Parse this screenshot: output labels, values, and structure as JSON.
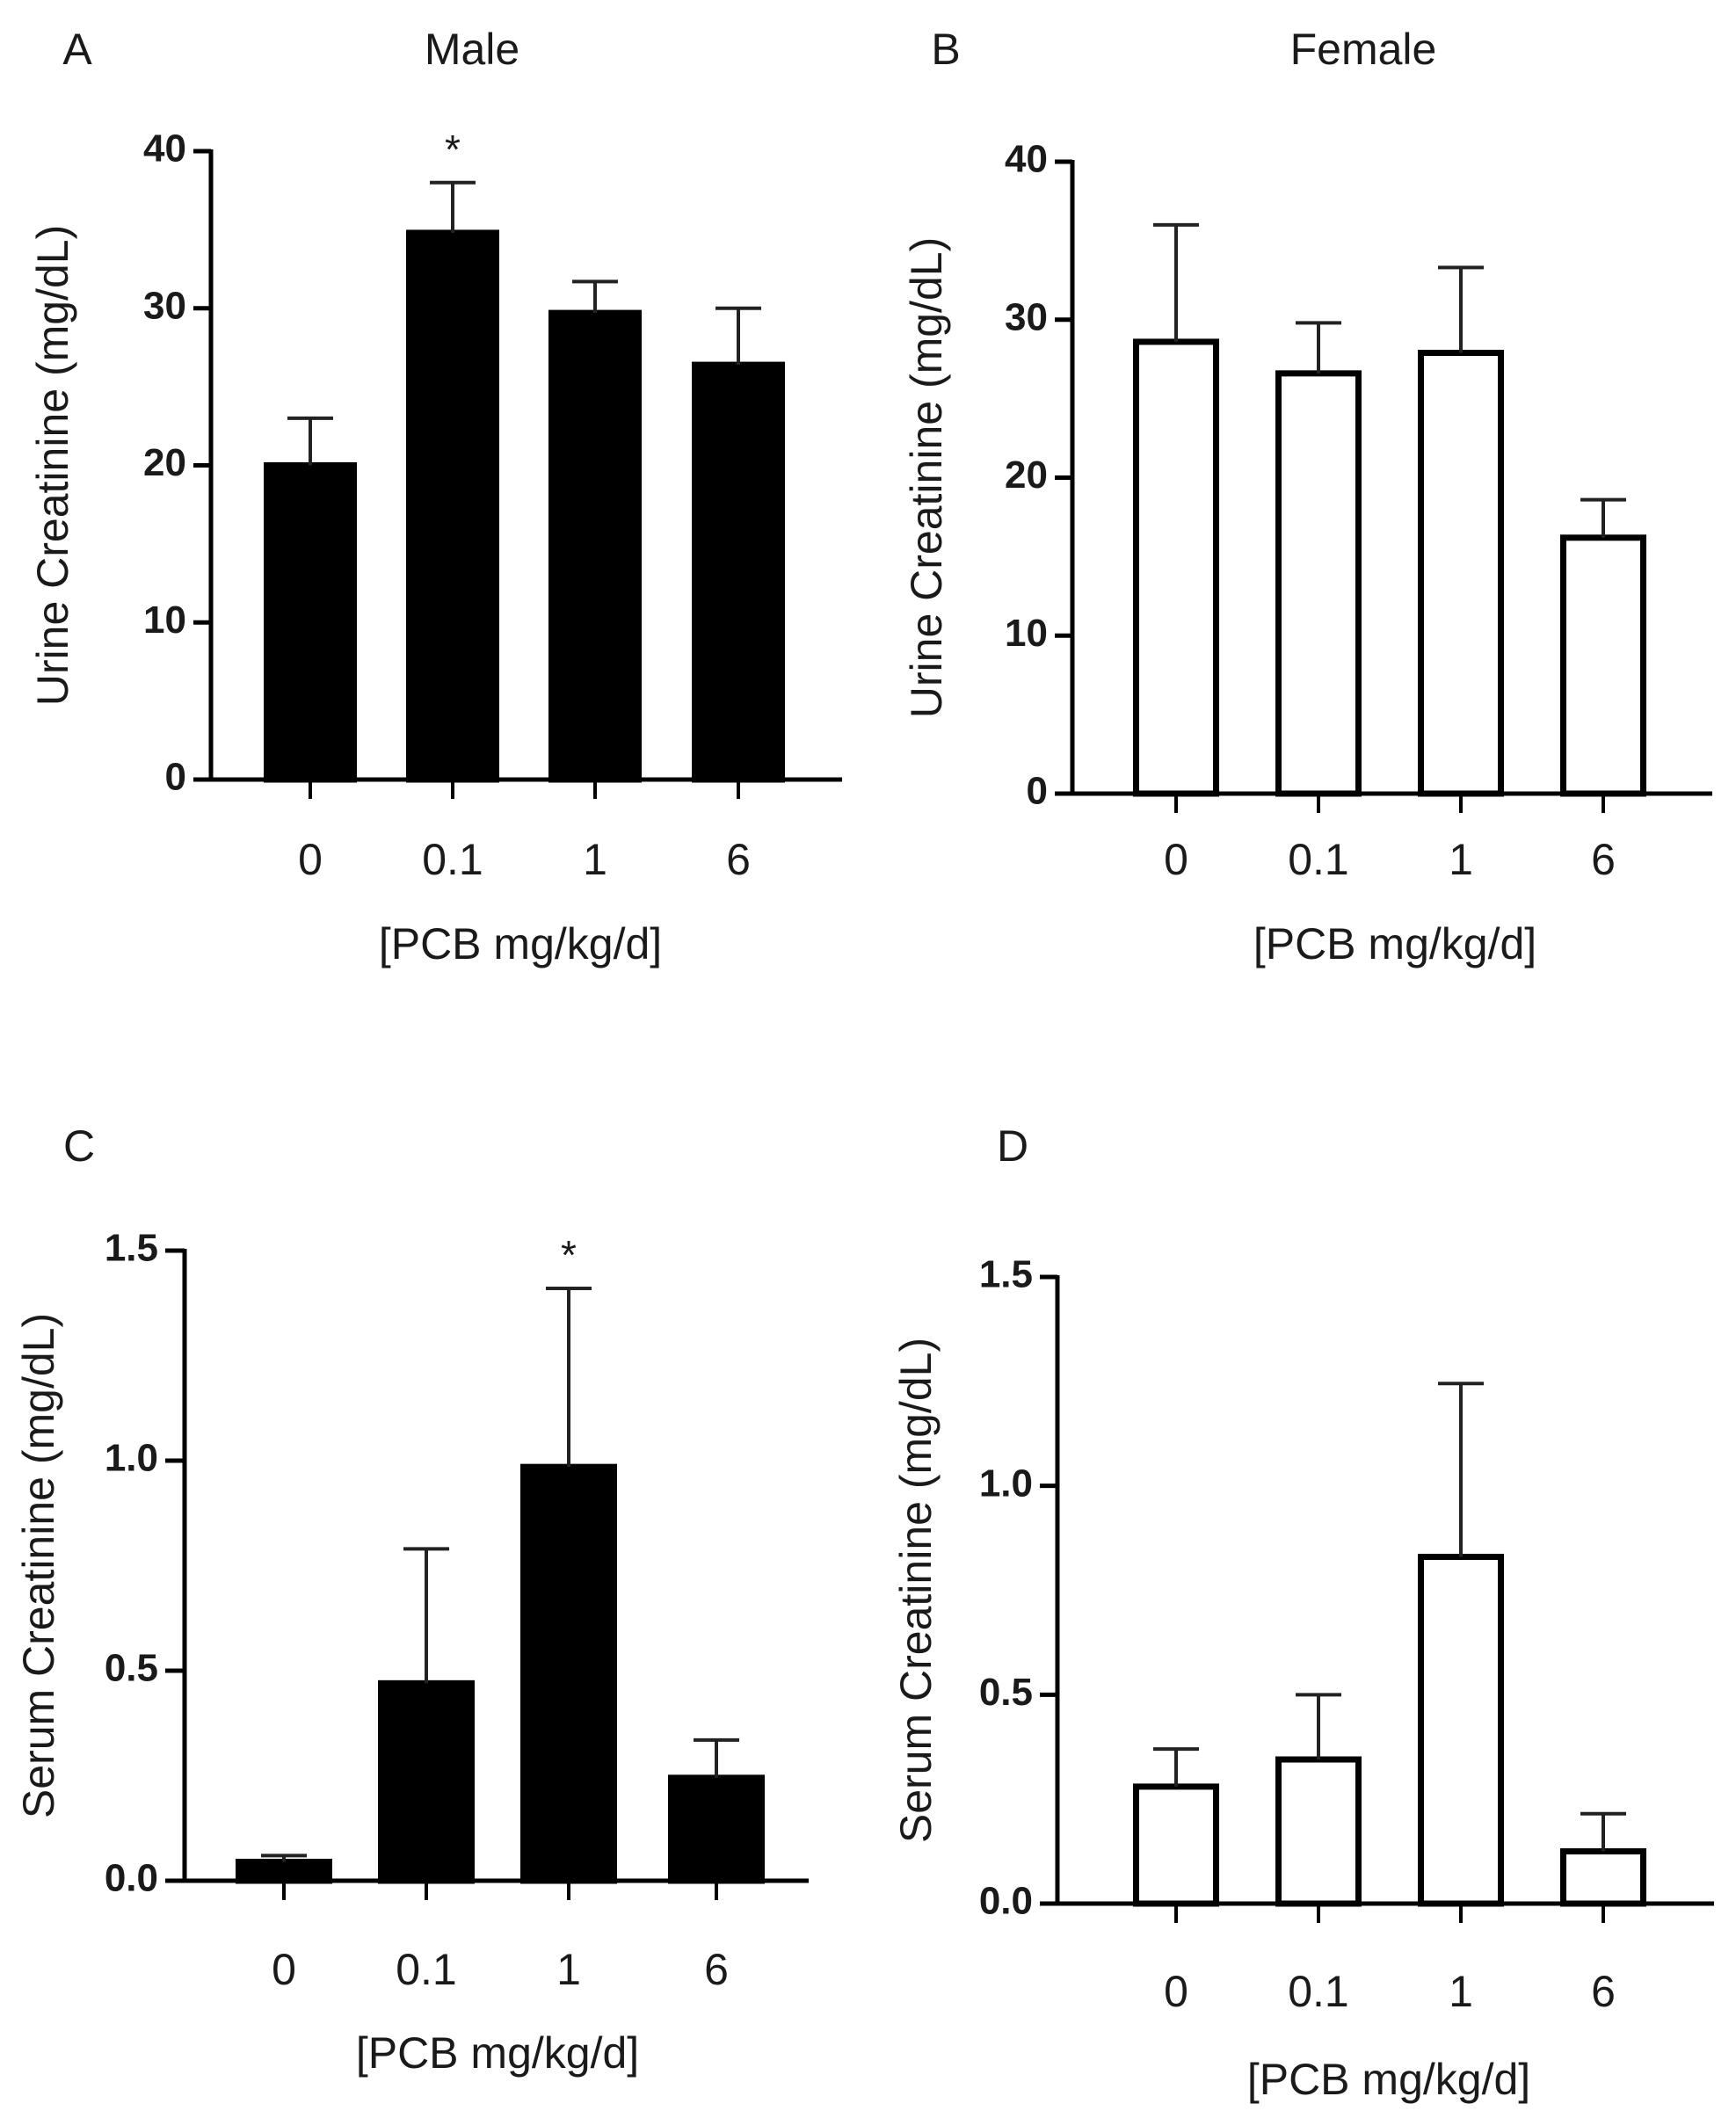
{
  "chart_data": [
    {
      "panel": "A",
      "title": "Male",
      "type": "bar",
      "categories": [
        "0",
        "0.1",
        "1",
        "6"
      ],
      "values": [
        20,
        34.8,
        29.7,
        26.4
      ],
      "errors": [
        3,
        3.2,
        2.0,
        3.6
      ],
      "significance": [
        "",
        "*",
        "",
        ""
      ],
      "xlabel": "[PCB mg/kg/d]",
      "ylabel": "Urine Creatinine (mg/dL)",
      "ylim": [
        0,
        40
      ],
      "yticks": [
        0,
        10,
        20,
        30,
        40
      ],
      "ytick_labels": [
        "0",
        "10",
        "20",
        "30",
        "40"
      ],
      "fill": "#000000"
    },
    {
      "panel": "B",
      "title": "Female",
      "type": "bar",
      "categories": [
        "0",
        "0.1",
        "1",
        "6"
      ],
      "values": [
        28.6,
        26.6,
        27.9,
        16.2
      ],
      "errors": [
        7.4,
        3.2,
        5.4,
        2.4
      ],
      "significance": [
        "",
        "",
        "",
        ""
      ],
      "xlabel": "[PCB mg/kg/d]",
      "ylabel": "Urine Creatinine (mg/dL)",
      "ylim": [
        0,
        40
      ],
      "yticks": [
        0,
        10,
        20,
        30,
        40
      ],
      "ytick_labels": [
        "0",
        "10",
        "20",
        "30",
        "40"
      ],
      "fill": "#ffffff"
    },
    {
      "panel": "C",
      "title": "",
      "type": "bar",
      "categories": [
        "0",
        "0.1",
        "1",
        "6"
      ],
      "values": [
        0.045,
        0.47,
        0.985,
        0.245
      ],
      "errors": [
        0.015,
        0.32,
        0.425,
        0.09
      ],
      "significance": [
        "",
        "",
        "*",
        ""
      ],
      "xlabel": "[PCB mg/kg/d]",
      "ylabel": "Serum Creatinine (mg/dL)",
      "ylim": [
        0,
        1.5
      ],
      "yticks": [
        0,
        0.5,
        1.0,
        1.5
      ],
      "ytick_labels": [
        "0.0",
        "0.5",
        "1.0",
        "1.5"
      ],
      "fill": "#000000"
    },
    {
      "panel": "D",
      "title": "",
      "type": "bar",
      "categories": [
        "0",
        "0.1",
        "1",
        "6"
      ],
      "values": [
        0.28,
        0.345,
        0.83,
        0.125
      ],
      "errors": [
        0.09,
        0.155,
        0.415,
        0.09
      ],
      "significance": [
        "",
        "",
        "",
        ""
      ],
      "xlabel": "[PCB mg/kg/d]",
      "ylabel": "Serum Creatinine (mg/dL)",
      "ylim": [
        0,
        1.5
      ],
      "yticks": [
        0,
        0.5,
        1.0,
        1.5
      ],
      "ytick_labels": [
        "0.0",
        "0.5",
        "1.0",
        "1.5"
      ],
      "fill": "#ffffff"
    }
  ]
}
